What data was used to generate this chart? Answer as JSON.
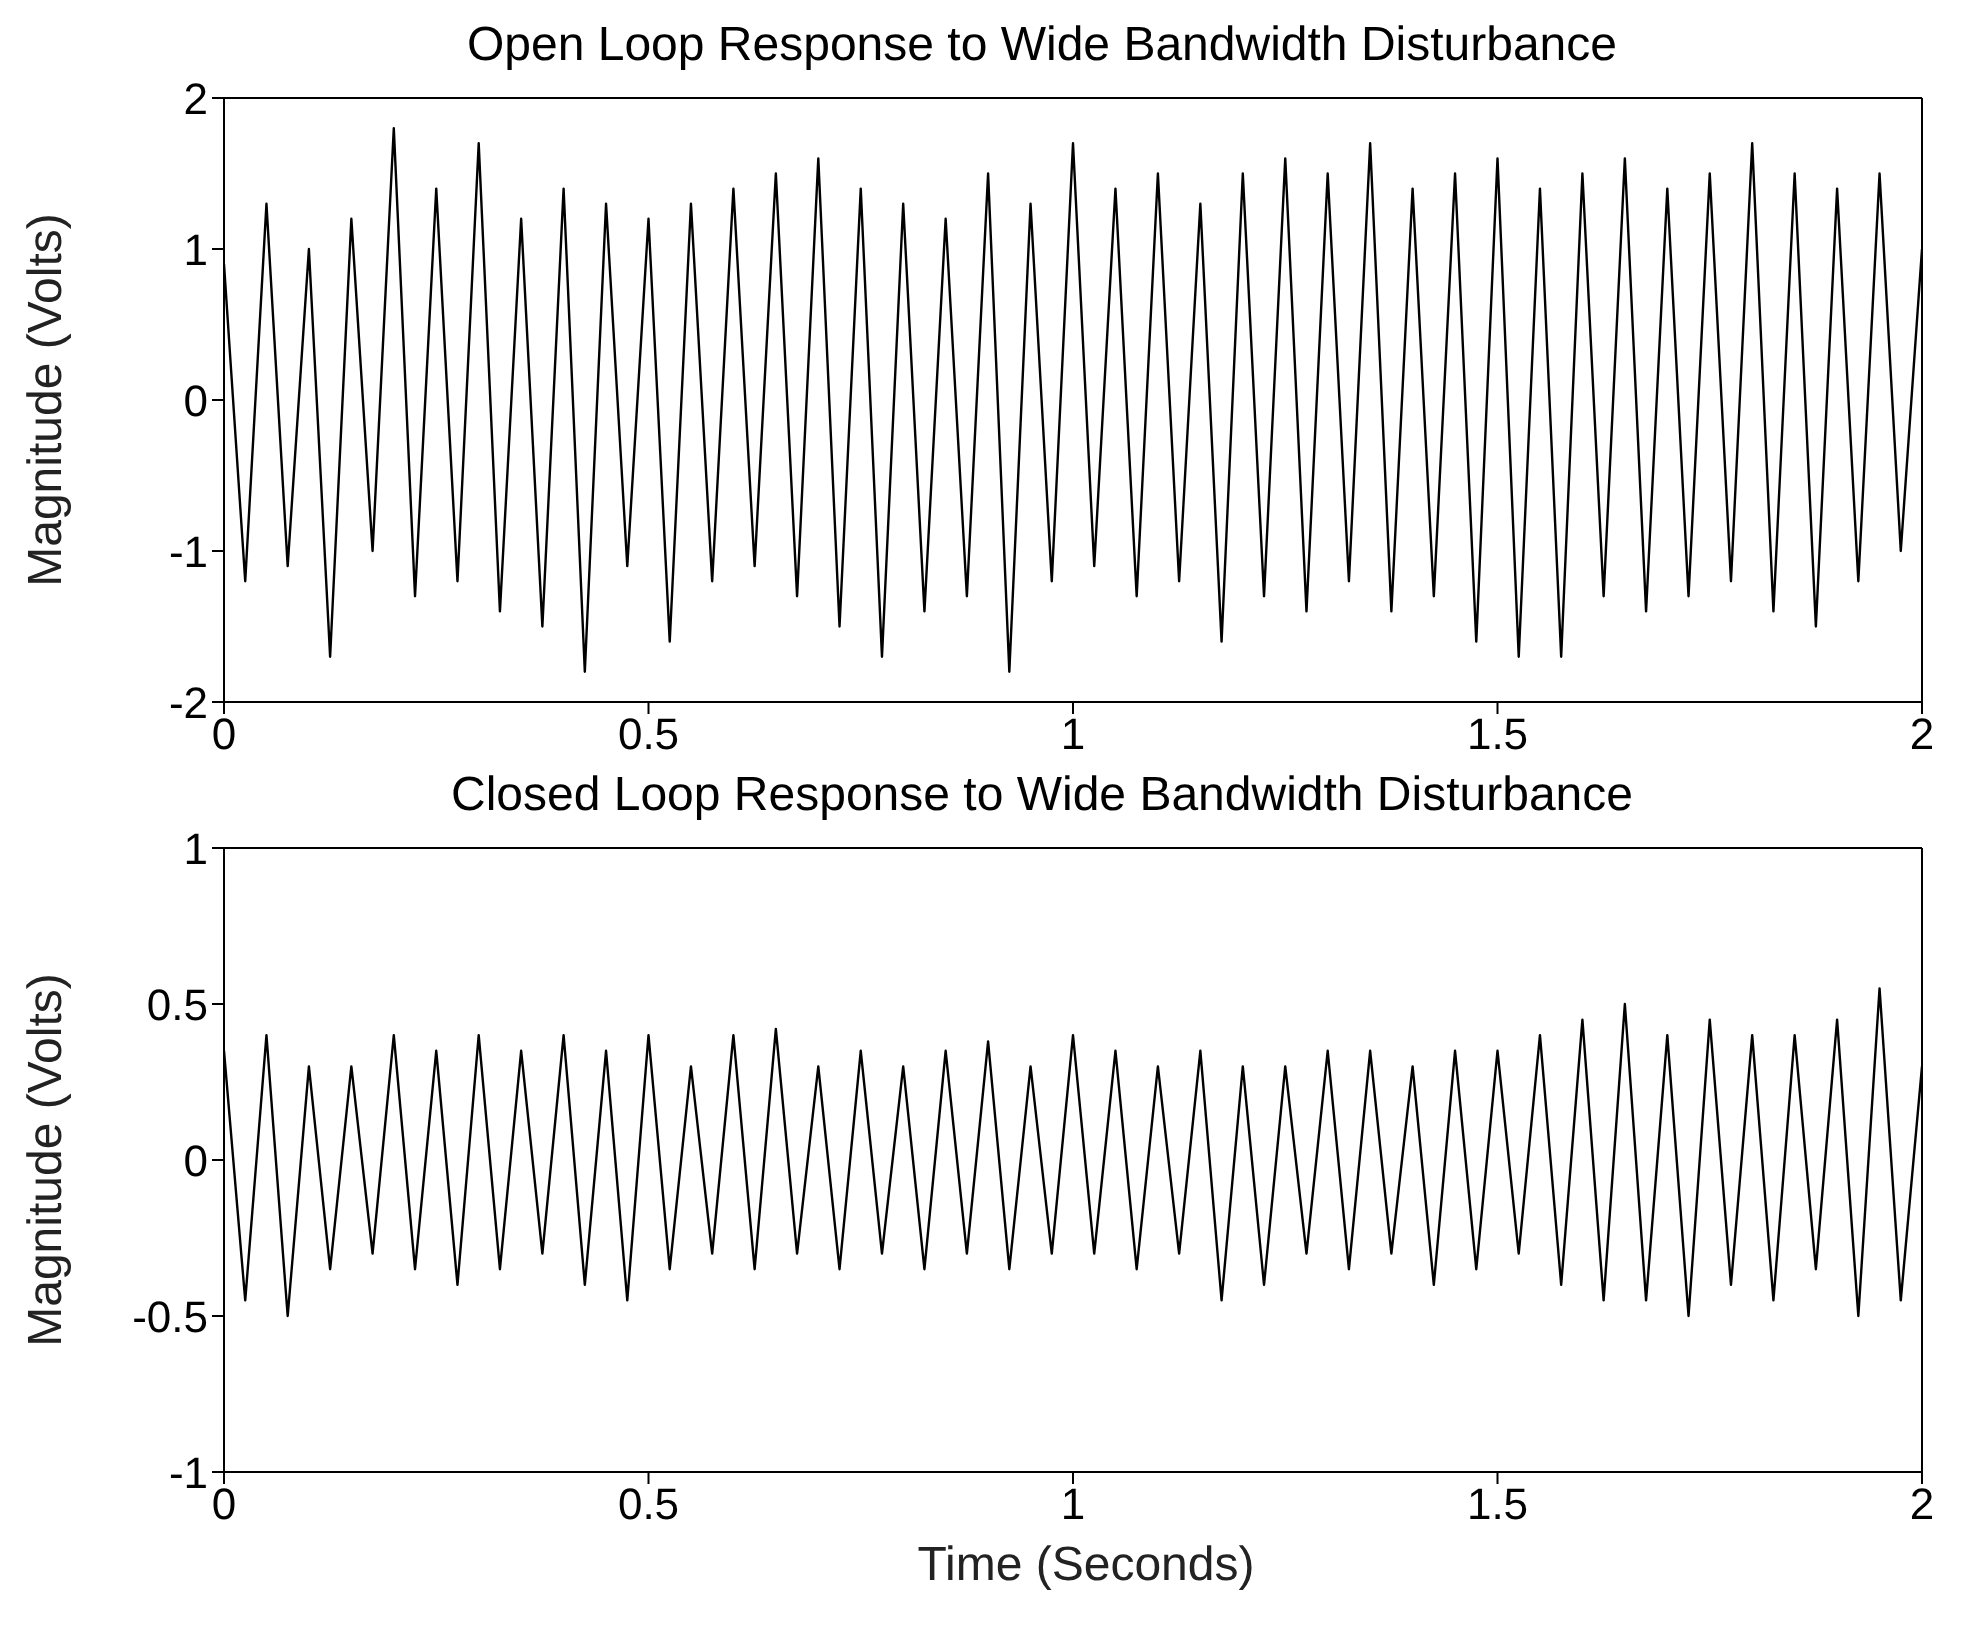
{
  "chart_data": [
    {
      "type": "line",
      "title": "Open Loop Response to Wide Bandwidth Disturbance",
      "ylabel": "Magnitude (Volts)",
      "color": "#000000",
      "xlim": [
        0,
        2
      ],
      "ylim": [
        -2,
        2
      ],
      "xticks": [
        0,
        0.5,
        1,
        1.5,
        2
      ],
      "yticks": [
        -2,
        -1,
        0,
        1,
        2
      ],
      "x": [
        0,
        0.025,
        0.05,
        0.075,
        0.1,
        0.125,
        0.15,
        0.175,
        0.2,
        0.225,
        0.25,
        0.275,
        0.3,
        0.325,
        0.35,
        0.375,
        0.4,
        0.425,
        0.45,
        0.475,
        0.5,
        0.525,
        0.55,
        0.575,
        0.6,
        0.625,
        0.65,
        0.675,
        0.7,
        0.725,
        0.75,
        0.775,
        0.8,
        0.825,
        0.85,
        0.875,
        0.9,
        0.925,
        0.95,
        0.975,
        1,
        1.025,
        1.05,
        1.075,
        1.1,
        1.125,
        1.15,
        1.175,
        1.2,
        1.225,
        1.25,
        1.275,
        1.3,
        1.325,
        1.35,
        1.375,
        1.4,
        1.425,
        1.45,
        1.475,
        1.5,
        1.525,
        1.55,
        1.575,
        1.6,
        1.625,
        1.65,
        1.675,
        1.7,
        1.725,
        1.75,
        1.775,
        1.8,
        1.825,
        1.85,
        1.875,
        1.9,
        1.925,
        1.95,
        1.975,
        2
      ],
      "values": [
        0.9,
        -1.2,
        1.3,
        -1.1,
        1.0,
        -1.7,
        1.2,
        -1.0,
        1.8,
        -1.3,
        1.4,
        -1.2,
        1.7,
        -1.4,
        1.2,
        -1.5,
        1.4,
        -1.8,
        1.3,
        -1.1,
        1.2,
        -1.6,
        1.3,
        -1.2,
        1.4,
        -1.1,
        1.5,
        -1.3,
        1.6,
        -1.5,
        1.4,
        -1.7,
        1.3,
        -1.4,
        1.2,
        -1.3,
        1.5,
        -1.8,
        1.3,
        -1.2,
        1.7,
        -1.1,
        1.4,
        -1.3,
        1.5,
        -1.2,
        1.3,
        -1.6,
        1.5,
        -1.3,
        1.6,
        -1.4,
        1.5,
        -1.2,
        1.7,
        -1.4,
        1.4,
        -1.3,
        1.5,
        -1.6,
        1.6,
        -1.7,
        1.4,
        -1.7,
        1.5,
        -1.3,
        1.6,
        -1.4,
        1.4,
        -1.3,
        1.5,
        -1.2,
        1.7,
        -1.4,
        1.5,
        -1.5,
        1.4,
        -1.2,
        1.5,
        -1.0,
        1.0
      ]
    },
    {
      "type": "line",
      "title": "Closed Loop Response to Wide Bandwidth Disturbance",
      "xlabel": "Time (Seconds)",
      "ylabel": "Magnitude (Volts)",
      "color": "#000000",
      "xlim": [
        0,
        2
      ],
      "ylim": [
        -1,
        1
      ],
      "xticks": [
        0,
        0.5,
        1,
        1.5,
        2
      ],
      "yticks": [
        -1,
        -0.5,
        0,
        0.5,
        1
      ],
      "x": [
        0,
        0.025,
        0.05,
        0.075,
        0.1,
        0.125,
        0.15,
        0.175,
        0.2,
        0.225,
        0.25,
        0.275,
        0.3,
        0.325,
        0.35,
        0.375,
        0.4,
        0.425,
        0.45,
        0.475,
        0.5,
        0.525,
        0.55,
        0.575,
        0.6,
        0.625,
        0.65,
        0.675,
        0.7,
        0.725,
        0.75,
        0.775,
        0.8,
        0.825,
        0.85,
        0.875,
        0.9,
        0.925,
        0.95,
        0.975,
        1,
        1.025,
        1.05,
        1.075,
        1.1,
        1.125,
        1.15,
        1.175,
        1.2,
        1.225,
        1.25,
        1.275,
        1.3,
        1.325,
        1.35,
        1.375,
        1.4,
        1.425,
        1.45,
        1.475,
        1.5,
        1.525,
        1.55,
        1.575,
        1.6,
        1.625,
        1.65,
        1.675,
        1.7,
        1.725,
        1.75,
        1.775,
        1.8,
        1.825,
        1.85,
        1.875,
        1.9,
        1.925,
        1.95,
        1.975,
        2
      ],
      "values": [
        0.35,
        -0.45,
        0.4,
        -0.5,
        0.3,
        -0.35,
        0.3,
        -0.3,
        0.4,
        -0.35,
        0.35,
        -0.4,
        0.4,
        -0.35,
        0.35,
        -0.3,
        0.4,
        -0.4,
        0.35,
        -0.45,
        0.4,
        -0.35,
        0.3,
        -0.3,
        0.4,
        -0.35,
        0.42,
        -0.3,
        0.3,
        -0.35,
        0.35,
        -0.3,
        0.3,
        -0.35,
        0.35,
        -0.3,
        0.38,
        -0.35,
        0.3,
        -0.3,
        0.4,
        -0.3,
        0.35,
        -0.35,
        0.3,
        -0.3,
        0.35,
        -0.45,
        0.3,
        -0.4,
        0.3,
        -0.3,
        0.35,
        -0.35,
        0.35,
        -0.3,
        0.3,
        -0.4,
        0.35,
        -0.35,
        0.35,
        -0.3,
        0.4,
        -0.4,
        0.45,
        -0.45,
        0.5,
        -0.45,
        0.4,
        -0.5,
        0.45,
        -0.4,
        0.4,
        -0.45,
        0.4,
        -0.35,
        0.45,
        -0.5,
        0.55,
        -0.45,
        0.3
      ]
    }
  ]
}
